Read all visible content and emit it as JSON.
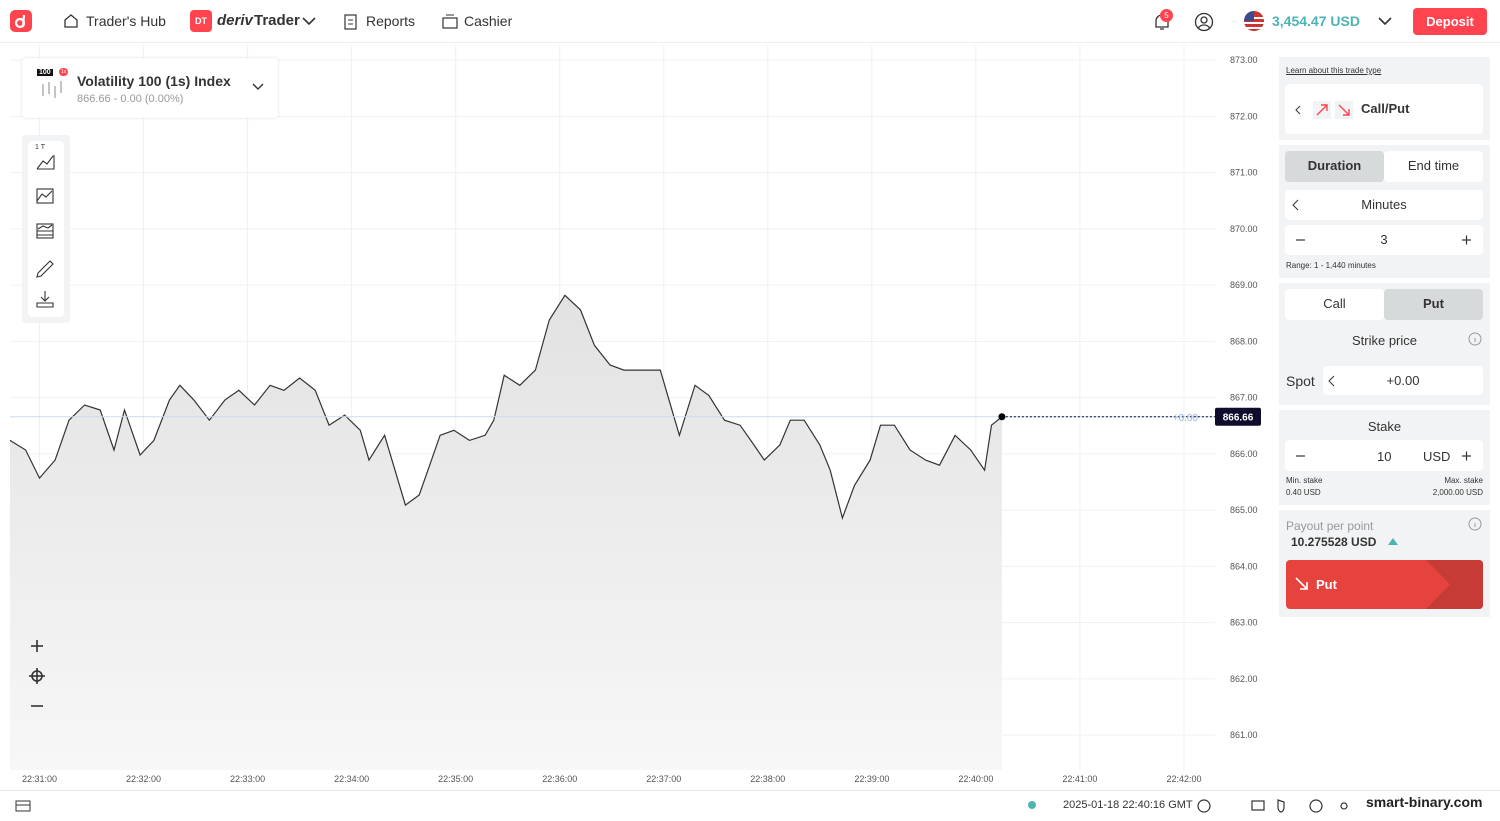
{
  "header": {
    "traders_hub": "Trader's Hub",
    "app_badge": "DT",
    "app_brand": "deriv",
    "app_name": "Trader",
    "reports": "Reports",
    "cashier": "Cashier",
    "notifications": "5",
    "balance": "3,454.47 USD",
    "deposit": "Deposit"
  },
  "symbol": {
    "badge": "100",
    "badge_sub": "1s",
    "name": "Volatility 100 (1s) Index",
    "quote": "866.66 - 0.00 (0.00%)"
  },
  "toolbar": {
    "interval": "1 T"
  },
  "chart_data": {
    "type": "line",
    "color": "#333333",
    "grid": true,
    "x": [
      "22:30:43",
      "22:30:52",
      "22:31:00",
      "22:31:09",
      "22:31:17",
      "22:31:26",
      "22:31:35",
      "22:31:43",
      "22:31:49",
      "22:31:58",
      "22:32:06",
      "22:32:15",
      "22:32:21",
      "22:32:29",
      "22:32:38",
      "22:32:47",
      "22:32:55",
      "22:33:04",
      "22:33:13",
      "22:33:21",
      "22:33:30",
      "22:33:39",
      "22:33:47",
      "22:33:56",
      "22:34:05",
      "22:34:10",
      "22:34:19",
      "22:34:25",
      "22:34:31",
      "22:34:39",
      "22:34:45",
      "22:34:51",
      "22:34:59",
      "22:35:08",
      "22:35:17",
      "22:35:22",
      "22:35:28",
      "22:35:37",
      "22:35:46",
      "22:35:54",
      "22:36:03",
      "22:36:12",
      "22:36:20",
      "22:36:29",
      "22:36:37",
      "22:36:46",
      "22:36:58",
      "22:37:03",
      "22:37:09",
      "22:37:18",
      "22:37:26",
      "22:37:35",
      "22:37:44",
      "22:37:52",
      "22:37:58",
      "22:38:07",
      "22:38:13",
      "22:38:21",
      "22:38:30",
      "22:38:36",
      "22:38:43",
      "22:38:50",
      "22:38:59",
      "22:39:05",
      "22:39:13",
      "22:39:22",
      "22:39:31",
      "22:39:39",
      "22:39:48",
      "22:39:57",
      "22:40:05",
      "22:40:09",
      "22:40:15"
    ],
    "values": [
      866.24,
      866.07,
      865.57,
      865.89,
      866.6,
      866.87,
      866.78,
      866.07,
      866.78,
      865.98,
      866.24,
      866.96,
      867.22,
      866.96,
      866.6,
      866.96,
      867.13,
      866.87,
      867.22,
      867.13,
      867.35,
      867.13,
      866.51,
      866.69,
      866.42,
      865.89,
      866.33,
      865.71,
      865.09,
      865.27,
      865.8,
      866.33,
      866.42,
      866.24,
      866.33,
      866.6,
      867.4,
      867.22,
      867.49,
      868.38,
      868.82,
      868.56,
      867.93,
      867.58,
      867.49,
      867.49,
      867.49,
      866.96,
      866.33,
      867.22,
      867.04,
      866.6,
      866.51,
      866.16,
      865.89,
      866.16,
      866.6,
      866.6,
      866.16,
      865.71,
      864.86,
      865.44,
      865.89,
      866.51,
      866.51,
      866.07,
      865.89,
      865.8,
      866.33,
      866.07,
      865.71,
      866.51,
      866.66
    ],
    "xlim": [
      "22:30:43",
      "22:42:15"
    ],
    "xticks": [
      "22:31:00",
      "22:32:00",
      "22:33:00",
      "22:34:00",
      "22:35:00",
      "22:36:00",
      "22:37:00",
      "22:38:00",
      "22:39:00",
      "22:40:00",
      "22:41:00",
      "22:42:00"
    ],
    "ylim": [
      860.38,
      873.27
    ],
    "yticks": [
      {
        "value": 861,
        "label": "861.00"
      },
      {
        "value": 862,
        "label": "862.00"
      },
      {
        "value": 863,
        "label": "863.00"
      },
      {
        "value": 864,
        "label": "864.00"
      },
      {
        "value": 865,
        "label": "865.00"
      },
      {
        "value": 866,
        "label": "866.00"
      },
      {
        "value": 867,
        "label": "867.00"
      },
      {
        "value": 868,
        "label": "868.00"
      },
      {
        "value": 869,
        "label": "869.00"
      },
      {
        "value": 870,
        "label": "870.00"
      },
      {
        "value": 871,
        "label": "871.00"
      },
      {
        "value": 872,
        "label": "872.00"
      },
      {
        "value": 873,
        "label": "873.00"
      }
    ],
    "current_price": 866.66,
    "barrier_label": "+0.00"
  },
  "trade": {
    "learn": "Learn about this trade type",
    "trade_type": "Call/Put",
    "duration_tab": "Duration",
    "end_time_tab": "End time",
    "unit": "Minutes",
    "duration": "3",
    "range": "Range: 1 - 1,440 minutes",
    "call": "Call",
    "put": "Put",
    "strike_price": "Strike price",
    "spot": "Spot",
    "spot_offset": "+0.00",
    "stake_label": "Stake",
    "stake": "10",
    "currency": "USD",
    "min_stake_label": "Min. stake",
    "min_stake": "0.40 USD",
    "max_stake_label": "Max. stake",
    "max_stake": "2,000.00 USD",
    "payout_label": "Payout per point",
    "payout": "10.275528 USD",
    "purchase": "Put"
  },
  "footer": {
    "time": "2025-01-18 22:40:16 GMT",
    "watermark": "smart-binary.com"
  }
}
